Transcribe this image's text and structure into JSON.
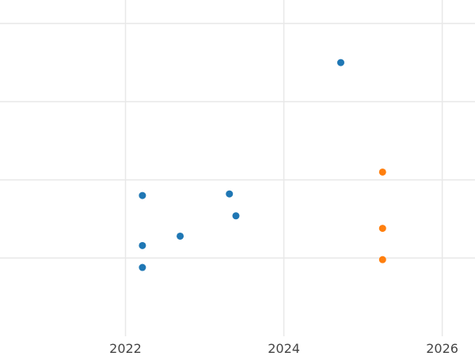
{
  "chart_data": {
    "type": "scatter",
    "title": "",
    "xlabel": "",
    "ylabel": "",
    "x_axis": {
      "type": "date",
      "range": [
        "2020-06-01",
        "2026-06-01"
      ],
      "ticks": [
        "2022",
        "2024",
        "2026"
      ]
    },
    "y_axis": {
      "range": [
        0,
        4.3
      ],
      "gridlines": [
        1,
        2,
        3,
        4
      ],
      "tick_labels_visible": false
    },
    "grid": true,
    "legend": "none",
    "series": [
      {
        "color": "#1f77b4",
        "points": [
          {
            "x": "2022-03-20",
            "y": 0.88
          },
          {
            "x": "2022-03-20",
            "y": 1.16
          },
          {
            "x": "2022-09-10",
            "y": 1.28
          },
          {
            "x": "2022-03-20",
            "y": 1.8
          },
          {
            "x": "2023-04-25",
            "y": 1.82
          },
          {
            "x": "2023-05-25",
            "y": 1.54
          },
          {
            "x": "2024-09-20",
            "y": 3.5
          }
        ]
      },
      {
        "color": "#ff7f0e",
        "points": [
          {
            "x": "2025-04-01",
            "y": 2.1
          },
          {
            "x": "2025-04-01",
            "y": 1.38
          },
          {
            "x": "2025-04-01",
            "y": 0.98
          }
        ]
      }
    ]
  }
}
